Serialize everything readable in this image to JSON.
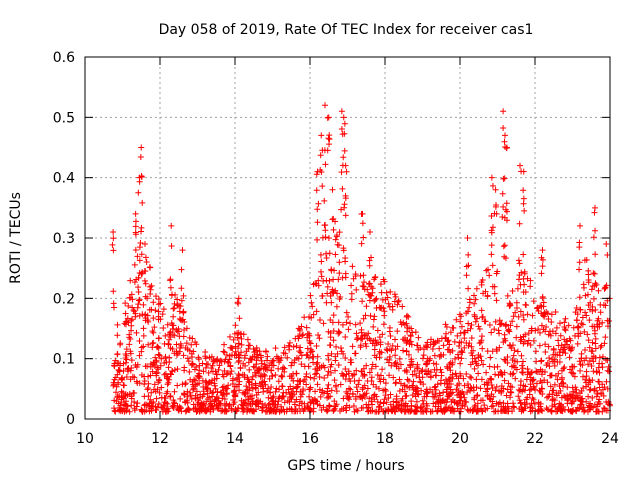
{
  "chart_data": {
    "type": "scatter",
    "title": "Day 058 of 2019, Rate Of TEC Index for receiver cas1",
    "xlabel": "GPS time / hours",
    "ylabel": "ROTI / TECUs",
    "xlim": [
      10,
      24
    ],
    "ylim": [
      0,
      0.6
    ],
    "xticks": [
      10,
      12,
      14,
      16,
      18,
      20,
      22,
      24
    ],
    "yticks": [
      0,
      0.1,
      0.2,
      0.3,
      0.4,
      0.5,
      0.6
    ],
    "xtick_labels": [
      "10",
      "12",
      "14",
      "16",
      "18",
      "20",
      "22",
      "24"
    ],
    "ytick_labels": [
      "0",
      "0.1",
      "0.2",
      "0.3",
      "0.4",
      "0.5",
      "0.6"
    ],
    "grid": true,
    "marker": "+",
    "color": "#ff0000",
    "series": [
      {
        "name": "ROTI",
        "envelope_x": [
          10.75,
          11.0,
          11.25,
          11.5,
          11.75,
          12.0,
          12.25,
          12.5,
          12.75,
          13.0,
          13.5,
          14.0,
          14.5,
          15.0,
          15.5,
          16.0,
          16.3,
          16.5,
          16.8,
          17.2,
          17.5,
          17.8,
          18.2,
          18.6,
          19.0,
          19.5,
          20.0,
          20.5,
          20.8,
          21.0,
          21.2,
          21.5,
          21.7,
          22.0,
          22.5,
          23.0,
          23.3,
          23.6,
          24.0
        ],
        "envelope_y": [
          0.16,
          0.18,
          0.24,
          0.3,
          0.26,
          0.2,
          0.17,
          0.24,
          0.16,
          0.12,
          0.1,
          0.16,
          0.12,
          0.12,
          0.13,
          0.2,
          0.3,
          0.34,
          0.32,
          0.26,
          0.22,
          0.24,
          0.22,
          0.18,
          0.12,
          0.15,
          0.18,
          0.22,
          0.3,
          0.26,
          0.2,
          0.22,
          0.26,
          0.22,
          0.18,
          0.16,
          0.28,
          0.24,
          0.22
        ],
        "spikes": [
          {
            "x": 10.75,
            "y": 0.31
          },
          {
            "x": 11.35,
            "y": 0.34
          },
          {
            "x": 11.45,
            "y": 0.4
          },
          {
            "x": 11.5,
            "y": 0.45
          },
          {
            "x": 11.6,
            "y": 0.29
          },
          {
            "x": 12.3,
            "y": 0.32
          },
          {
            "x": 12.6,
            "y": 0.28
          },
          {
            "x": 14.1,
            "y": 0.2
          },
          {
            "x": 16.2,
            "y": 0.41
          },
          {
            "x": 16.3,
            "y": 0.47
          },
          {
            "x": 16.4,
            "y": 0.52
          },
          {
            "x": 16.5,
            "y": 0.5
          },
          {
            "x": 16.6,
            "y": 0.38
          },
          {
            "x": 16.85,
            "y": 0.51
          },
          {
            "x": 16.9,
            "y": 0.5
          },
          {
            "x": 16.95,
            "y": 0.42
          },
          {
            "x": 17.4,
            "y": 0.34
          },
          {
            "x": 17.6,
            "y": 0.31
          },
          {
            "x": 20.2,
            "y": 0.3
          },
          {
            "x": 20.85,
            "y": 0.4
          },
          {
            "x": 20.95,
            "y": 0.38
          },
          {
            "x": 21.15,
            "y": 0.51
          },
          {
            "x": 21.2,
            "y": 0.47
          },
          {
            "x": 21.25,
            "y": 0.45
          },
          {
            "x": 21.6,
            "y": 0.42
          },
          {
            "x": 21.7,
            "y": 0.41
          },
          {
            "x": 22.2,
            "y": 0.28
          },
          {
            "x": 23.2,
            "y": 0.32
          },
          {
            "x": 23.6,
            "y": 0.35
          },
          {
            "x": 23.9,
            "y": 0.29
          }
        ]
      }
    ]
  }
}
